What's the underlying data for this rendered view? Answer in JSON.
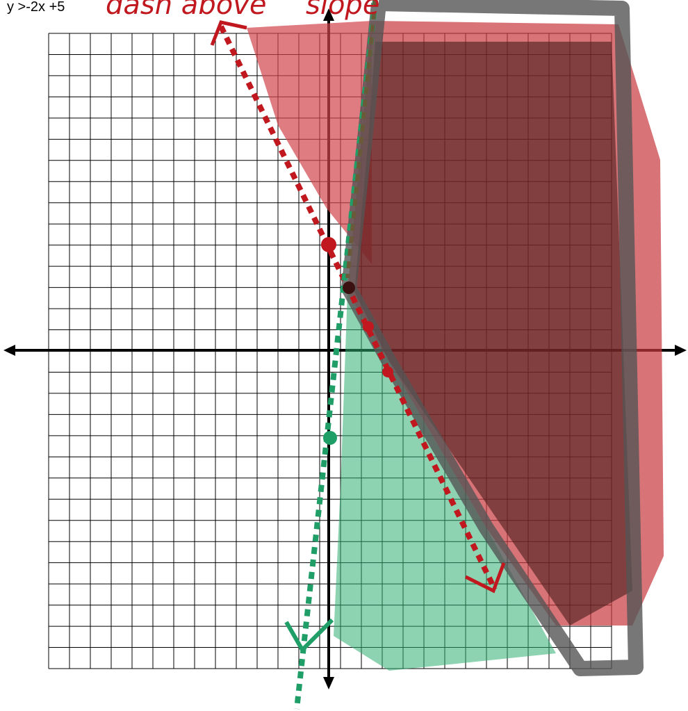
{
  "equation": "y >-2x +5",
  "annotations": [
    "dash above",
    "slope"
  ]
}
